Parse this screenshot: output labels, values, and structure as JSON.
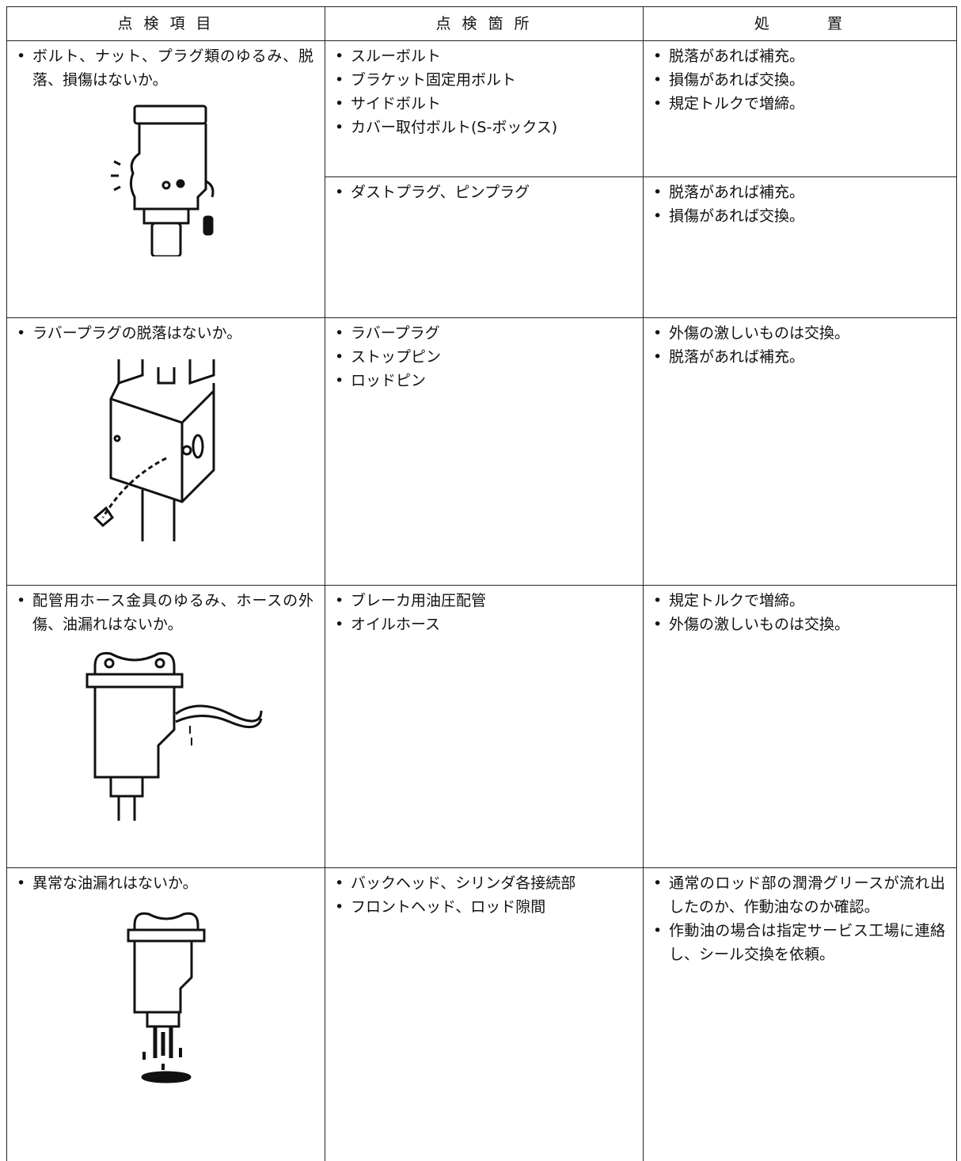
{
  "header": [
    "点 検 項 目",
    "点 検 箇 所",
    "処　　　置"
  ],
  "rows": [
    {
      "item": "ボルト、ナット、プラグ類のゆるみ、脱落、損傷はないか。",
      "groups": [
        {
          "locations": [
            "スルーボルト",
            "ブラケット固定用ボルト",
            "サイドボルト",
            "カバー取付ボルト(S-ボックス)"
          ],
          "actions": [
            "脱落があれば補充。",
            "損傷があれば交換。",
            "規定トルクで増締。"
          ]
        },
        {
          "locations": [
            "ダストプラグ、ピンプラグ"
          ],
          "actions": [
            "脱落があれば補充。",
            "損傷があれば交換。"
          ]
        }
      ]
    },
    {
      "item": "ラバープラグの脱落はないか。",
      "groups": [
        {
          "locations": [
            "ラバープラグ",
            "ストップピン",
            "ロッドピン"
          ],
          "actions": [
            "外傷の激しいものは交換。",
            "脱落があれば補充。"
          ]
        }
      ]
    },
    {
      "item": "配管用ホース金具のゆるみ、ホースの外傷、油漏れはないか。",
      "groups": [
        {
          "locations": [
            "ブレーカ用油圧配管",
            "オイルホース"
          ],
          "actions": [
            "規定トルクで増締。",
            "外傷の激しいものは交換。"
          ]
        }
      ]
    },
    {
      "item": "異常な油漏れはないか。",
      "groups": [
        {
          "locations": [
            "バックヘッド、シリンダ各接続部",
            "フロントヘッド、ロッド隙間"
          ],
          "actions": [
            "通常のロッド部の潤滑グリースが流れ出したのか、作動油なのか確認。",
            "作動油の場合は指定サービス工場に連絡し、シール交換を依頼。"
          ]
        }
      ]
    }
  ]
}
